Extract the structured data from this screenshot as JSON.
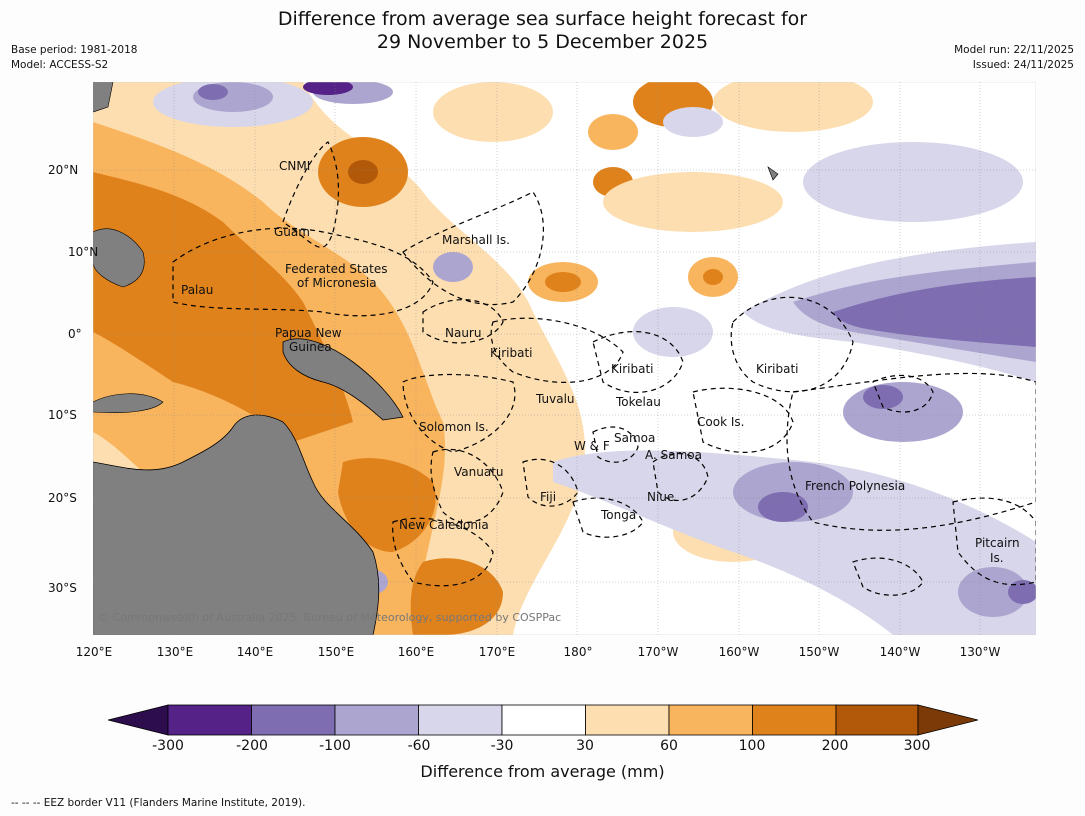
{
  "title": {
    "line1": "Difference from average sea surface height forecast for",
    "line2": "29 November to 5 December 2025"
  },
  "meta_left": {
    "base_period": "Base period: 1981-2018",
    "model": "Model: ACCESS-S2"
  },
  "meta_right": {
    "model_run": "Model run: 22/11/2025",
    "issued": "Issued: 24/11/2025"
  },
  "lon_labels": [
    "120°E",
    "130°E",
    "140°E",
    "150°E",
    "160°E",
    "170°E",
    "180°",
    "170°W",
    "160°W",
    "150°W",
    "140°W",
    "130°W"
  ],
  "lat_labels": [
    "20°N",
    "10°N",
    "0°",
    "10°S",
    "20°S",
    "30°S"
  ],
  "regions": [
    "CNMI",
    "Guam",
    "Marshall Is.",
    "Federated States",
    "of Micronesia",
    "Palau",
    "Nauru",
    "Papua New",
    "Guinea",
    "Kiribati",
    "Kiribati",
    "Kiribati",
    "Tuvalu",
    "Tokelau",
    "Cook Is.",
    "Solomon Is.",
    "Samoa",
    "W & F",
    "A. Samoa",
    "Vanuatu",
    "Fiji",
    "Niue",
    "French Polynesia",
    "Tonga",
    "New Caledonia",
    "Pitcairn",
    "Is."
  ],
  "copyright": "© Commonwealth of Australia 2025, Bureau of Meteorology, supported by COSPPac",
  "colorbar": {
    "labels": [
      "-300",
      "-200",
      "-100",
      "-60",
      "-30",
      "30",
      "60",
      "100",
      "200",
      "300"
    ],
    "colors": [
      "#2d0d4e",
      "#552288",
      "#7e6db0",
      "#aca5cf",
      "#d7d6ea",
      "#ffffff",
      "#fddeb0",
      "#f8b55e",
      "#e0821c",
      "#b25809",
      "#7c3a08"
    ],
    "title": "Difference from average (mm)"
  },
  "footer": "--  --  -- EEZ border V11 (Flanders Marine Institute, 2019)."
}
